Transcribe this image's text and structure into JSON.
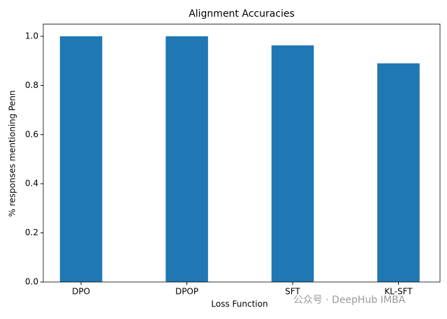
{
  "chart_data": {
    "type": "bar",
    "title": "Alignment Accuracies",
    "x_label": "Loss Function",
    "y_label": "% responses mentioning Penn",
    "categories": [
      "DPO",
      "DPOP",
      "SFT",
      "KL-SFT"
    ],
    "values": [
      1.0,
      1.0,
      0.963,
      0.89
    ],
    "color": "#1f77b4",
    "ylim": [
      0,
      1.05
    ],
    "yticks": [
      {
        "value": 0,
        "label": "0.0"
      },
      0.2,
      0.4,
      0.6,
      0.8,
      {
        "value": 1,
        "label": "1.0"
      }
    ],
    "grid": false,
    "watermark": "公众号 · DeepHub IMBA"
  }
}
